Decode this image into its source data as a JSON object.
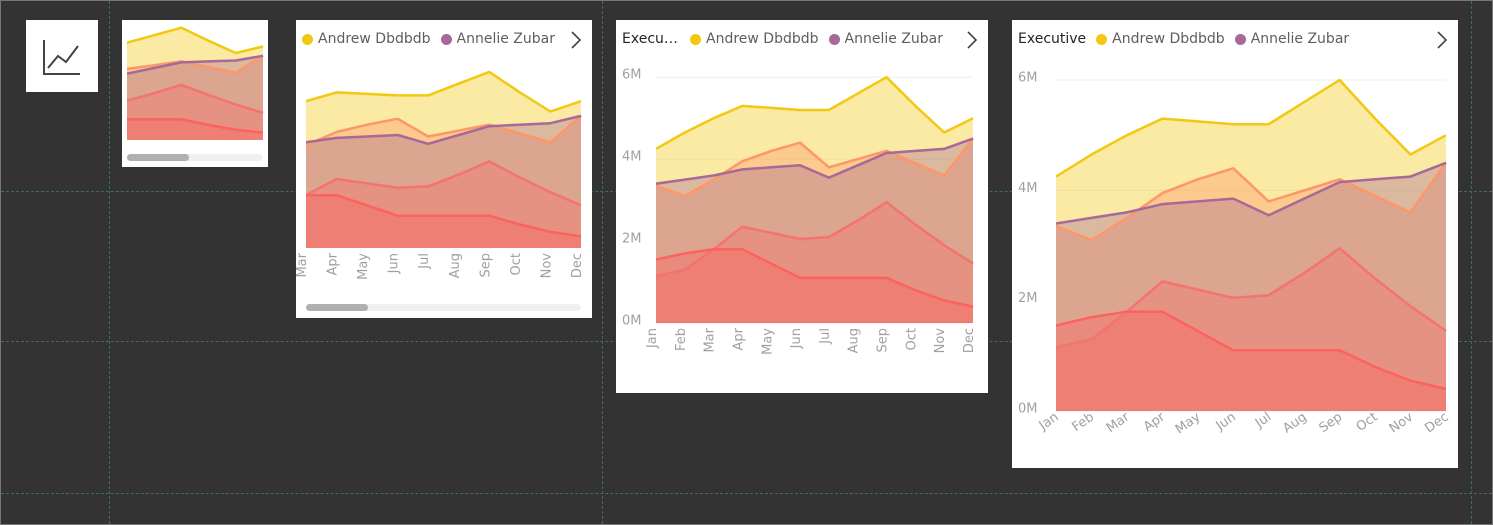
{
  "chart_data": {
    "type": "area",
    "title": "Executive",
    "categories": [
      "Jan",
      "Feb",
      "Mar",
      "Apr",
      "May",
      "Jun",
      "Jul",
      "Aug",
      "Sep",
      "Oct",
      "Nov",
      "Dec"
    ],
    "series": [
      {
        "name": "Andrew Dbdbdb",
        "color": "#F2C811",
        "values": [
          4250000,
          4650000,
          5000000,
          5300000,
          5250000,
          5200000,
          5200000,
          5600000,
          6000000,
          5300000,
          4650000,
          5000000
        ]
      },
      {
        "color": "#FE9666",
        "values": [
          3350000,
          3100000,
          3500000,
          3950000,
          4200000,
          4400000,
          3800000,
          4000000,
          4200000,
          3900000,
          3600000,
          4500000
        ]
      },
      {
        "name": "Annelie Zubar",
        "color": "#A66999",
        "values": [
          3400000,
          3500000,
          3600000,
          3750000,
          3800000,
          3850000,
          3550000,
          3850000,
          4150000,
          4200000,
          4250000,
          4500000
        ]
      },
      {
        "color": "#F4736F",
        "values": [
          1150000,
          1300000,
          1800000,
          2350000,
          2200000,
          2050000,
          2100000,
          2500000,
          2950000,
          2400000,
          1900000,
          1450000
        ]
      },
      {
        "color": "#FD625E",
        "values": [
          1550000,
          1700000,
          1800000,
          1800000,
          1450000,
          1100000,
          1100000,
          1100000,
          1100000,
          800000,
          550000,
          400000
        ]
      }
    ],
    "ylim": [
      0,
      6200000
    ],
    "yticks": [
      {
        "value": 0,
        "label": "0M"
      },
      {
        "value": 2000000,
        "label": "2M"
      },
      {
        "value": 4000000,
        "label": "4M"
      },
      {
        "value": 6000000,
        "label": "6M"
      }
    ],
    "grid": true
  }
}
